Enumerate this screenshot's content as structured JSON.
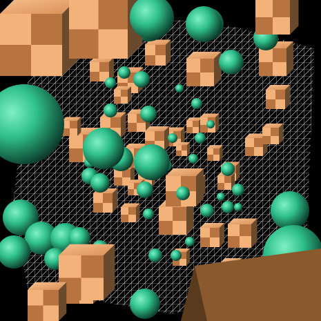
{
  "scene": {
    "background_color": "#000000",
    "mesh_color": "#f2f2f2",
    "sphere_color": "#2fbf8c",
    "sphere_highlight_color": "#5fe0b2",
    "sphere_shadow_color": "#0d4a36",
    "cube_light_color": "#f3b27a",
    "cube_mid_color": "#d48d52",
    "cube_dark_color": "#6a4a2c"
  }
}
